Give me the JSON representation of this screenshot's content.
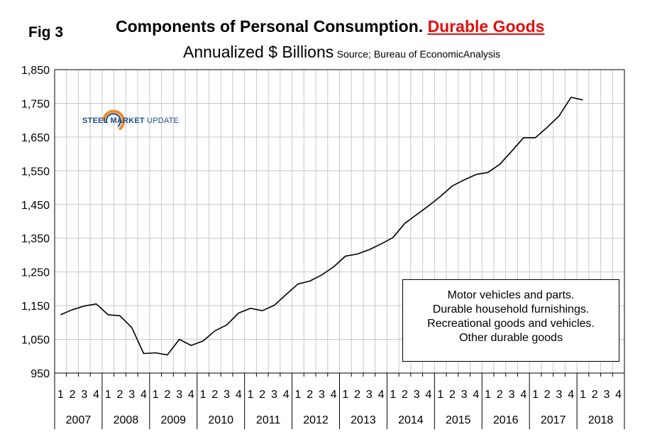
{
  "fig_label": "Fig 3",
  "chart_data": {
    "type": "line",
    "title": "Components of Personal Consumption.",
    "title_highlight": "Durable Goods",
    "subtitle": "Annualized $ Billions",
    "source": "Source; Bureau of EconomicAnalysis",
    "xlabel": "",
    "ylabel": "",
    "ylim": [
      950,
      1850
    ],
    "yticks": [
      950,
      1050,
      1150,
      1250,
      1350,
      1450,
      1550,
      1650,
      1750,
      1850
    ],
    "ytick_labels": [
      "950",
      "1,050",
      "1,150",
      "1,250",
      "1,350",
      "1,450",
      "1,550",
      "1,650",
      "1,750",
      "1,850"
    ],
    "grid": true,
    "legend_position": "bottom-right",
    "years": [
      "2007",
      "2008",
      "2009",
      "2010",
      "2011",
      "2012",
      "2013",
      "2014",
      "2015",
      "2016",
      "2017",
      "2018"
    ],
    "quarters": [
      "1",
      "2",
      "3",
      "4"
    ],
    "series": [
      {
        "values": [
          1123,
          1138,
          1149,
          1155,
          1123,
          1120,
          1085,
          1008,
          1010,
          1004,
          1050,
          1032,
          1045,
          1075,
          1093,
          1128,
          1142,
          1135,
          1151,
          1183,
          1214,
          1223,
          1241,
          1265,
          1297,
          1303,
          1316,
          1333,
          1352,
          1394,
          1420,
          1446,
          1474,
          1505,
          1523,
          1539,
          1545,
          1569,
          1608,
          1648,
          1648,
          1679,
          1713,
          1768,
          1760
        ]
      }
    ],
    "annotation_lines": [
      "Motor vehicles and parts.",
      "Durable household furnishings.",
      "Recreational goods and vehicles.",
      "Other durable goods"
    ]
  },
  "logo": {
    "word1": "STEEL",
    "word2": "MARKET",
    "word3": "UPDATE"
  },
  "colors": {
    "line": "#000000",
    "grid": "#c8c8c8",
    "highlight": "#e01010",
    "logo_blue": "#1b4d8c",
    "logo_orange": "#f08a1c"
  }
}
